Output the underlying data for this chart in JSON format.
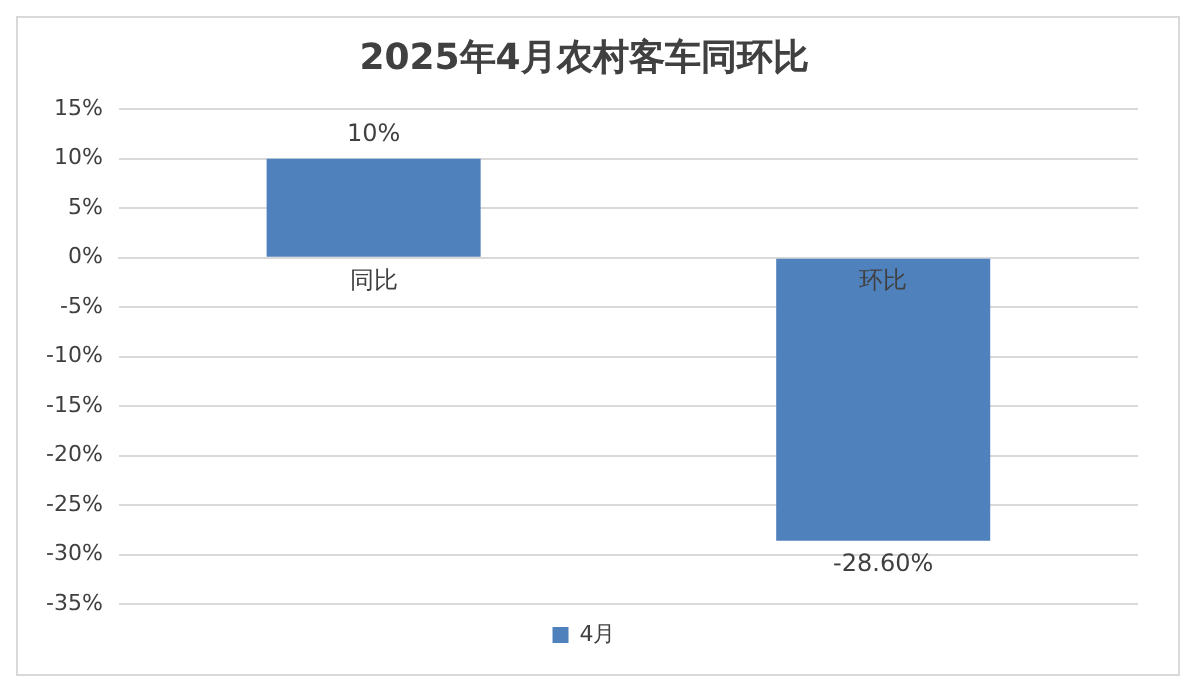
{
  "chart_data": {
    "type": "bar",
    "title": "2025年4月农村客车同环比",
    "categories": [
      "同比",
      "环比"
    ],
    "series": [
      {
        "name": "4月",
        "color": "#4f81bd",
        "values": [
          10,
          -28.6
        ],
        "value_labels": [
          "10%",
          "-28.60%"
        ]
      }
    ],
    "ylim": [
      -35,
      15
    ],
    "yticks": [
      {
        "value": 15,
        "label": "15%"
      },
      {
        "value": 10,
        "label": "10%"
      },
      {
        "value": 5,
        "label": "5%"
      },
      {
        "value": 0,
        "label": "0%"
      },
      {
        "value": -5,
        "label": "-5%"
      },
      {
        "value": -10,
        "label": "-10%"
      },
      {
        "value": -15,
        "label": "-15%"
      },
      {
        "value": -20,
        "label": "-20%"
      },
      {
        "value": -25,
        "label": "-25%"
      },
      {
        "value": -30,
        "label": "-30%"
      },
      {
        "value": -35,
        "label": "-35%"
      }
    ],
    "grid": "y",
    "legend": "bottom"
  }
}
